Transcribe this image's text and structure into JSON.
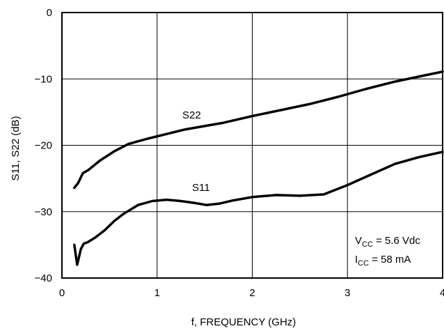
{
  "chart_data": {
    "type": "line",
    "xlabel": "f, FREQUENCY (GHz)",
    "ylabel": "S11, S22 (dB)",
    "xlim": [
      0,
      4
    ],
    "ylim": [
      -40,
      0
    ],
    "x_ticks": [
      0,
      1,
      2,
      3,
      4
    ],
    "y_ticks": [
      0,
      -10,
      -20,
      -30,
      -40
    ],
    "x_tick_labels": [
      "0",
      "1",
      "2",
      "3",
      "4"
    ],
    "y_tick_labels": [
      "0",
      "−10",
      "−20",
      "−30",
      "−40"
    ],
    "grid": true,
    "series": [
      {
        "name": "S22",
        "x": [
          0.13,
          0.17,
          0.22,
          0.28,
          0.4,
          0.55,
          0.7,
          0.9,
          1.1,
          1.3,
          1.5,
          1.7,
          2.0,
          2.3,
          2.6,
          2.9,
          3.2,
          3.5,
          3.8,
          4.0
        ],
        "y": [
          -26.4,
          -25.7,
          -24.2,
          -23.7,
          -22.3,
          -20.9,
          -19.8,
          -19.0,
          -18.3,
          -17.6,
          -17.1,
          -16.6,
          -15.6,
          -14.7,
          -13.8,
          -12.7,
          -11.5,
          -10.4,
          -9.5,
          -8.9
        ]
      },
      {
        "name": "S11",
        "x": [
          0.13,
          0.16,
          0.18,
          0.2,
          0.23,
          0.27,
          0.35,
          0.45,
          0.55,
          0.65,
          0.8,
          0.95,
          1.1,
          1.25,
          1.4,
          1.52,
          1.65,
          1.8,
          2.0,
          2.25,
          2.5,
          2.75,
          3.0,
          3.25,
          3.5,
          3.75,
          4.0
        ],
        "y": [
          -35.0,
          -38.0,
          -36.8,
          -35.6,
          -34.8,
          -34.6,
          -33.9,
          -32.8,
          -31.4,
          -30.3,
          -29.0,
          -28.4,
          -28.2,
          -28.4,
          -28.7,
          -29.0,
          -28.8,
          -28.3,
          -27.8,
          -27.5,
          -27.6,
          -27.4,
          -26.0,
          -24.4,
          -22.8,
          -21.8,
          -21.0
        ]
      }
    ],
    "series_labels": [
      "S22",
      "S11"
    ],
    "notes": {
      "vcc_main": "V",
      "vcc_sub": "CC",
      "vcc_rest": " = 5.6 Vdc",
      "icc_main": "I",
      "icc_sub": "CC",
      "icc_rest": " = 58 mA"
    }
  }
}
